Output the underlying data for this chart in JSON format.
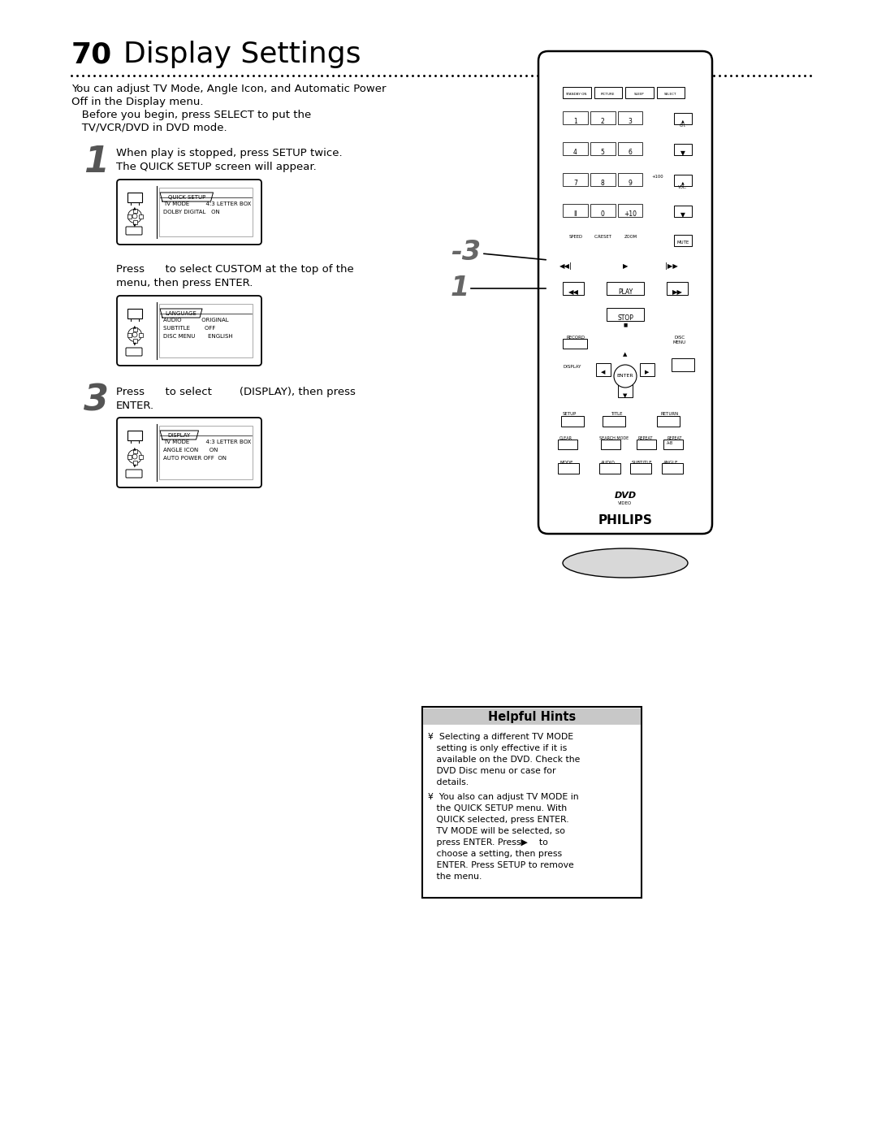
{
  "bg_color": "#ffffff",
  "page_number": "70",
  "title": "Display Settings",
  "title_fontsize": 26,
  "intro_text_line1": "You can adjust TV Mode, Angle Icon, and Automatic Power",
  "intro_text_line2": "Off in the Display menu.",
  "intro_text_line3": "   Before you begin, press SELECT to put the",
  "intro_text_line4": "   TV/VCR/DVD in DVD mode.",
  "step1_text": "When play is stopped, press SETUP twice.\nThe QUICK SETUP screen will appear.",
  "step2_text": "Press      to select CUSTOM at the top of the\nmenu, then press ENTER.",
  "step3_text": "Press      to select        (DISPLAY), then press\nENTER.",
  "helpful_hints_title": "Helpful Hints",
  "hint1_line1": "¥  Selecting a different TV MODE",
  "hint1_line2": "   setting is only effective if it is",
  "hint1_line3": "   available on the DVD. Check the",
  "hint1_line4": "   DVD Disc menu or case for",
  "hint1_line5": "   details.",
  "hint2_line1": "¥  You also can adjust TV MODE in",
  "hint2_line2": "   the QUICK SETUP menu. With",
  "hint2_line3": "   QUICK selected, press ENTER.",
  "hint2_line4": "   TV MODE will be selected, so",
  "hint2_line5": "   press ENTER. Press▶    to",
  "hint2_line6": "   choose a setting, then press",
  "hint2_line7": "   ENTER. Press SETUP to remove",
  "hint2_line8": "   the menu.",
  "remote_minus3": "-3",
  "remote_1": "1"
}
